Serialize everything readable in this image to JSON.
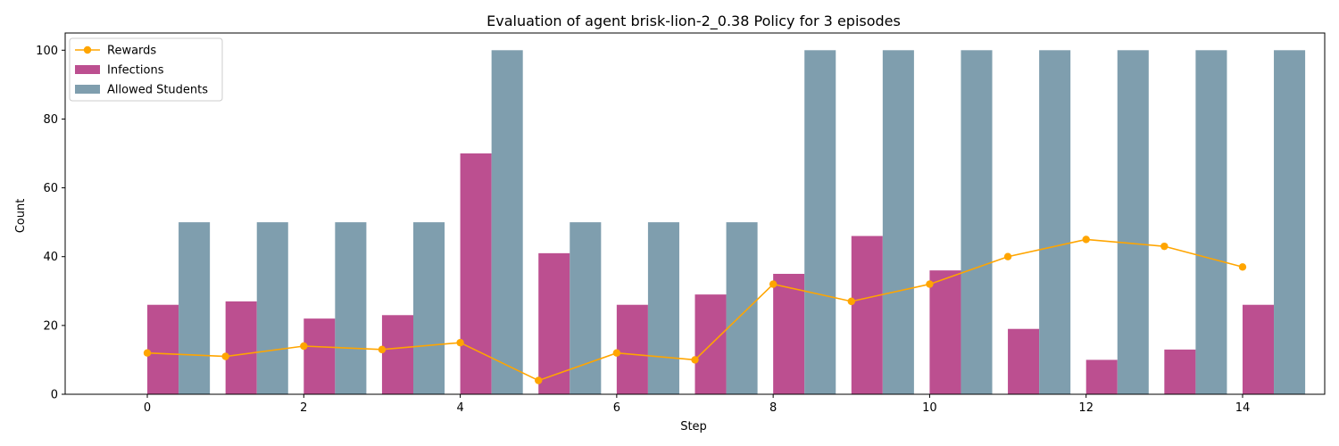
{
  "chart_data": {
    "type": "bar",
    "title": "Evaluation of agent brisk-lion-2_0.38 Policy for 3 episodes",
    "xlabel": "Step",
    "ylabel": "Count",
    "x": [
      0,
      1,
      2,
      3,
      4,
      5,
      6,
      7,
      8,
      9,
      10,
      11,
      12,
      13,
      14
    ],
    "xticks": [
      0,
      2,
      4,
      6,
      8,
      10,
      12,
      14
    ],
    "yticks": [
      0,
      20,
      40,
      60,
      80,
      100
    ],
    "ylim": [
      0,
      105
    ],
    "xlim": [
      -1.05,
      15.05
    ],
    "grid": false,
    "legend_position": "upper-left",
    "series": [
      {
        "name": "Rewards",
        "kind": "line",
        "color": "#ffa500",
        "values": [
          12,
          11,
          14,
          13,
          15,
          4,
          12,
          10,
          32,
          27,
          32,
          40,
          45,
          43,
          37
        ]
      },
      {
        "name": "Infections",
        "kind": "bar",
        "color": "#bc4f90",
        "values": [
          26,
          27,
          22,
          23,
          70,
          41,
          26,
          29,
          35,
          46,
          36,
          19,
          10,
          13,
          26
        ]
      },
      {
        "name": "Allowed Students",
        "kind": "bar",
        "color": "#7f9eae",
        "values": [
          50,
          50,
          50,
          50,
          100,
          50,
          50,
          50,
          100,
          100,
          100,
          100,
          100,
          100,
          100
        ]
      }
    ]
  }
}
